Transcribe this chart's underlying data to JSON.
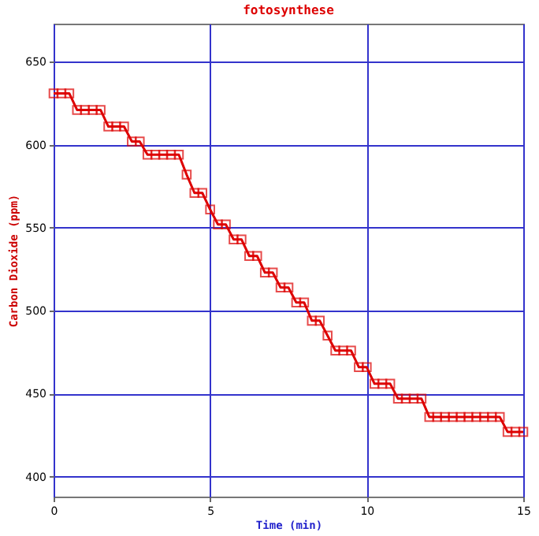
{
  "chart_data": {
    "type": "line",
    "title": "fotosynthese",
    "xlabel": "Time (min)",
    "ylabel": "Carbon Dioxide (ppm)",
    "x": [
      0,
      0.25,
      0.5,
      0.75,
      1,
      1.25,
      1.5,
      1.75,
      2,
      2.25,
      2.5,
      2.75,
      3,
      3.25,
      3.5,
      3.75,
      4,
      4.25,
      4.5,
      4.75,
      5,
      5.25,
      5.5,
      5.75,
      6,
      6.25,
      6.5,
      6.75,
      7,
      7.25,
      7.5,
      7.75,
      8,
      8.25,
      8.5,
      8.75,
      9,
      9.25,
      9.5,
      9.75,
      10,
      10.25,
      10.5,
      10.75,
      11,
      11.25,
      11.5,
      11.75,
      12,
      12.25,
      12.5,
      12.75,
      13,
      13.25,
      13.5,
      13.75,
      14,
      14.25,
      14.5,
      14.75,
      15
    ],
    "series": [
      {
        "color": "#dd0000",
        "values": [
          631,
          631,
          631,
          621,
          621,
          621,
          621,
          611,
          611,
          611,
          602,
          602,
          594,
          594,
          594,
          594,
          594,
          582,
          571,
          571,
          561,
          552,
          552,
          543,
          543,
          533,
          533,
          523,
          523,
          514,
          514,
          505,
          505,
          494,
          494,
          485,
          476,
          476,
          476,
          466,
          466,
          456,
          456,
          456,
          447,
          447,
          447,
          447,
          436,
          436,
          436,
          436,
          436,
          436,
          436,
          436,
          436,
          436,
          427,
          427,
          427
        ]
      }
    ],
    "xlim": [
      0,
      15
    ],
    "xticks": [
      0,
      5,
      10,
      15
    ],
    "ylim": [
      388,
      673
    ],
    "yticks": [
      400,
      450,
      500,
      550,
      600,
      650
    ],
    "grid": true,
    "legend": false,
    "marker": "square",
    "line_style": "solid"
  }
}
